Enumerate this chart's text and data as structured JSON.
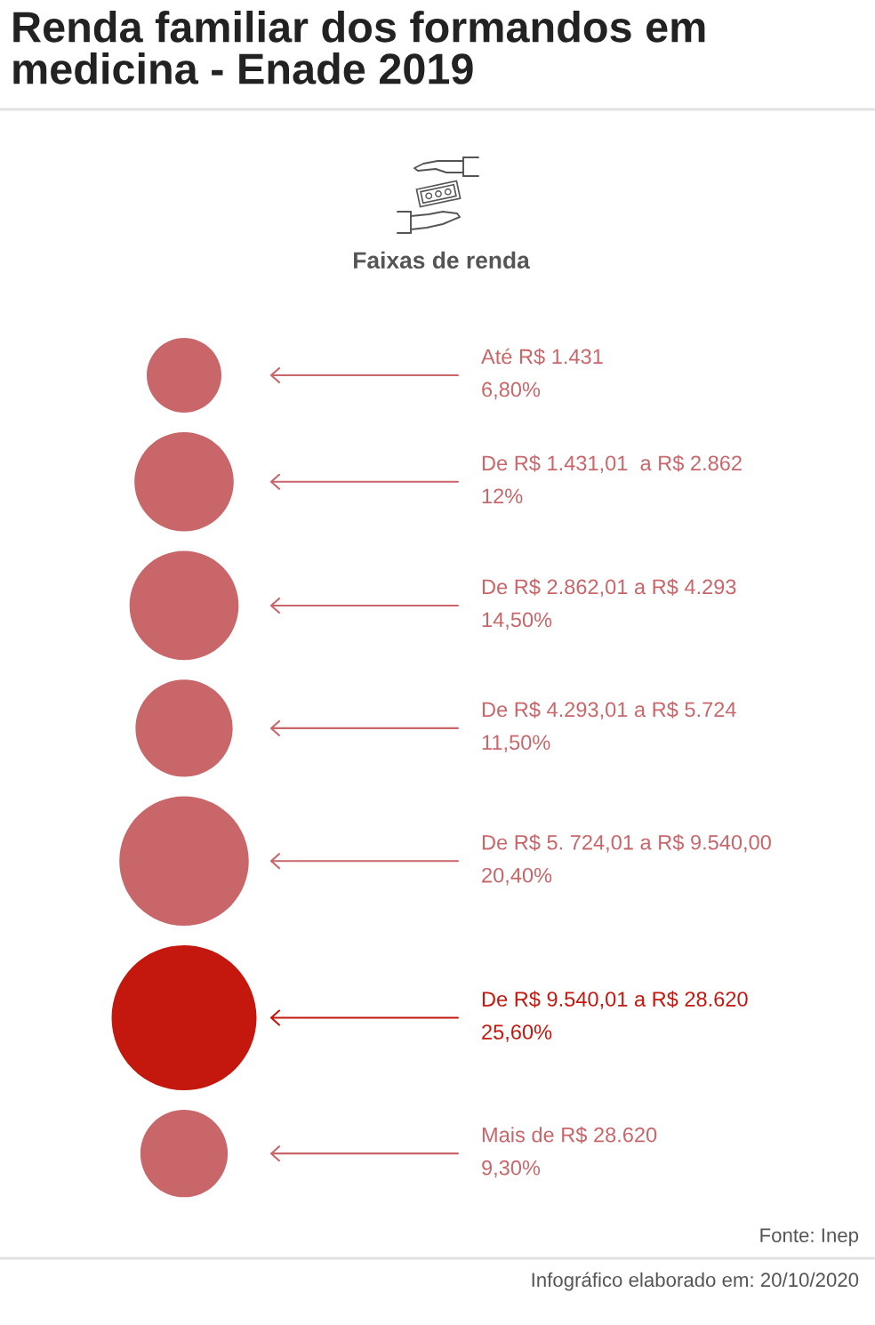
{
  "chart_data": {
    "type": "other",
    "title": "Renda familiar dos formandos em medicina - Enade 2019",
    "subtitle": "Faixas de renda",
    "categories": [
      "Até R$ 1.431",
      "De R$ 1.431,01  a R$ 2.862",
      "De R$ 2.862,01 a R$ 4.293",
      "De R$ 4.293,01 a R$ 5.724",
      "De R$ 5. 724,01 a R$ 9.540,00",
      "De R$ 9.540,01 a R$ 28.620",
      "Mais de R$ 28.620"
    ],
    "values": [
      6.8,
      12,
      14.5,
      11.5,
      20.4,
      25.6,
      9.3
    ],
    "value_labels": [
      "6,80%",
      "12%",
      "14,50%",
      "11,50%",
      "20,40%",
      "25,60%",
      "9,30%"
    ],
    "colors": [
      "#c8666a",
      "#c8666a",
      "#c8666a",
      "#c8666a",
      "#c8666a",
      "#c4170d",
      "#c8666a"
    ],
    "annotations": [
      "Fonte: Inep",
      "Infográfico elaborado em: 20/10/2020"
    ]
  }
}
